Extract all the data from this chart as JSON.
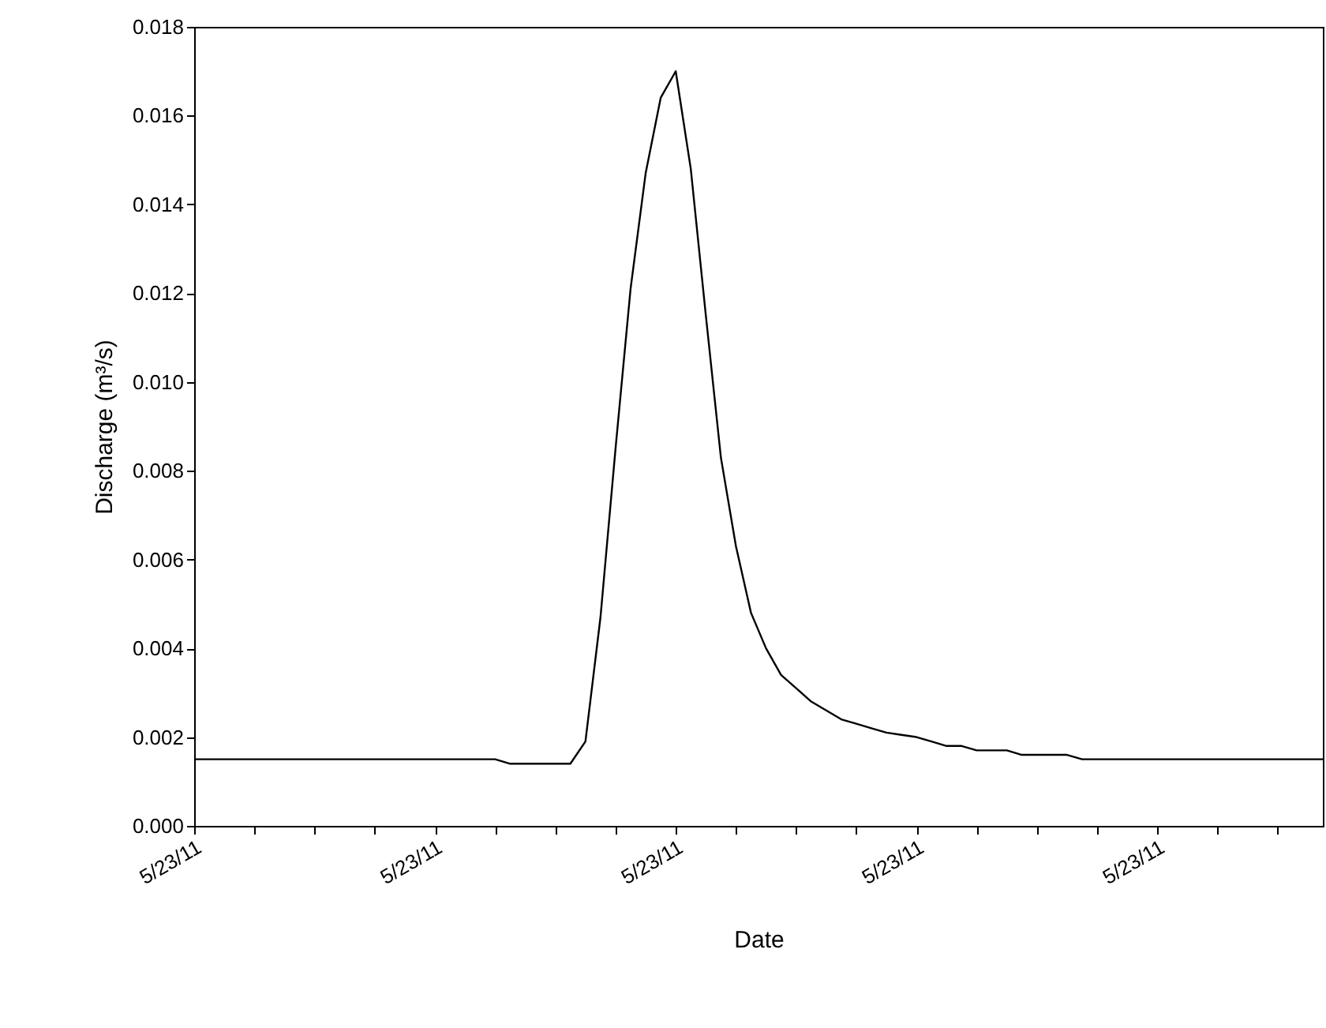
{
  "chart_data": {
    "type": "line",
    "xlabel": "Date",
    "ylabel": "Discharge (m³/s)",
    "categories": [
      "5/23/11",
      null,
      null,
      null,
      null,
      null,
      null,
      null,
      null,
      null,
      null,
      null,
      null,
      null,
      null,
      null,
      "5/23/11",
      null,
      null,
      null,
      null,
      null,
      null,
      null,
      null,
      null,
      null,
      null,
      null,
      null,
      null,
      null,
      "5/23/11",
      null,
      null,
      null,
      null,
      null,
      null,
      null,
      null,
      null,
      null,
      null,
      null,
      null,
      null,
      null,
      "5/23/11",
      null,
      null,
      null,
      null,
      null,
      null,
      null,
      null,
      null,
      null,
      null,
      null,
      null,
      null,
      null,
      "5/23/11",
      null,
      null,
      null,
      null,
      null,
      null,
      null,
      null,
      null,
      null,
      null
    ],
    "series": [
      {
        "color": "#000000",
        "values": [
          0.0015,
          0.0015,
          0.0015,
          0.0015,
          0.0015,
          0.0015,
          0.0015,
          0.0015,
          0.0015,
          0.0015,
          0.0015,
          0.0015,
          0.0015,
          0.0015,
          0.0015,
          0.0015,
          0.0015,
          0.0015,
          0.0015,
          0.0015,
          0.0015,
          0.0014,
          0.0014,
          0.0014,
          0.0014,
          0.0014,
          0.0019,
          0.0047,
          0.0085,
          0.0121,
          0.0147,
          0.0164,
          0.017,
          0.0148,
          0.0115,
          0.0083,
          0.0063,
          0.0048,
          0.004,
          0.0034,
          0.0031,
          0.0028,
          0.0026,
          0.0024,
          0.0023,
          0.0022,
          0.0021,
          0.00205,
          0.002,
          0.0019,
          0.0018,
          0.0018,
          0.0017,
          0.0017,
          0.0017,
          0.0016,
          0.0016,
          0.0016,
          0.0016,
          0.0015,
          0.0015,
          0.0015,
          0.0015,
          0.0015,
          0.0015,
          0.0015,
          0.0015,
          0.0015,
          0.0015,
          0.0015,
          0.0015,
          0.0015,
          0.0015,
          0.0015,
          0.0015,
          0.0015
        ]
      }
    ],
    "ylim": [
      0,
      0.018
    ],
    "yticks": [
      {
        "value": 0,
        "label": "0.000"
      },
      {
        "value": 0.002,
        "label": "0.002"
      },
      {
        "value": 0.004,
        "label": "0.004"
      },
      {
        "value": 0.006,
        "label": "0.006"
      },
      {
        "value": 0.008,
        "label": "0.008"
      },
      {
        "value": 0.01,
        "label": "0.010"
      },
      {
        "value": 0.012,
        "label": "0.012"
      },
      {
        "value": 0.014,
        "label": "0.014"
      },
      {
        "value": 0.016,
        "label": "0.016"
      },
      {
        "value": 0.018,
        "label": "0.018"
      }
    ],
    "marker": "none",
    "line_style": "solid"
  }
}
